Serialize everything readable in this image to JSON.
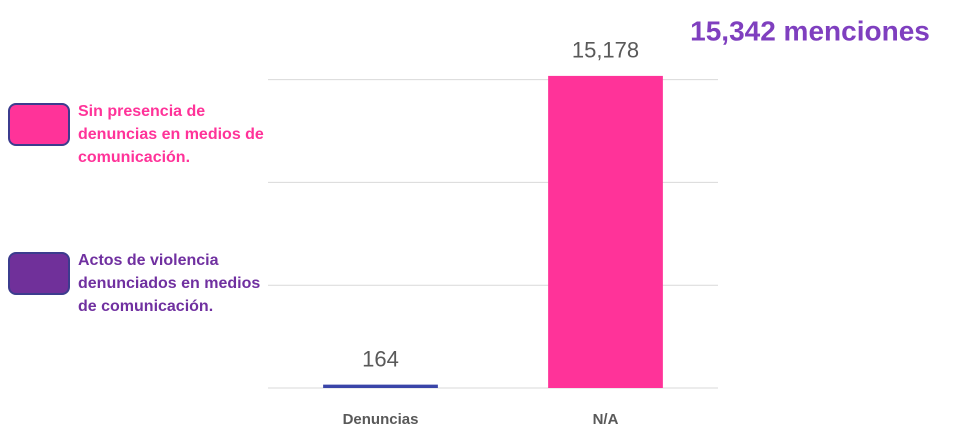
{
  "chart_data": {
    "type": "bar",
    "annotation": "15,342 menciones",
    "categories": [
      "Denuncias",
      "N/A"
    ],
    "values": [
      164,
      15178
    ],
    "value_labels": [
      "164",
      "15,178"
    ],
    "colors": [
      "#3a45a8",
      "#ff3399"
    ],
    "ylim": [
      0,
      16000
    ],
    "yticks": [
      0,
      5000,
      10000,
      15000
    ],
    "grid": true,
    "legend": [
      {
        "name": "Sin presencia de denuncias en medios de comunicación.",
        "color": "#ff3399",
        "text_color": "#ff3399"
      },
      {
        "name": "Actos de violencia denunciados en medios de comunicación.",
        "color": "#70309a",
        "text_color": "#7030a0"
      }
    ]
  }
}
